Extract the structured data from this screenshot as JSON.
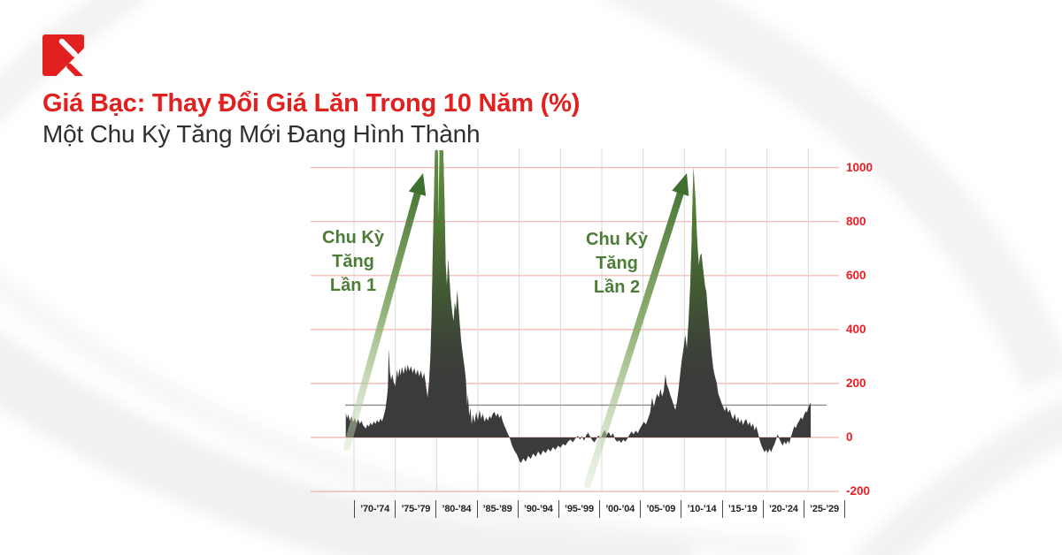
{
  "header": {
    "title": "Giá Bạc: Thay Đổi Giá Lăn Trong 10 Năm (%)",
    "subtitle": "Một Chu Kỳ Tăng Mới Đang Hình Thành"
  },
  "logo": {
    "name": "brand-mark"
  },
  "chart_data": {
    "type": "area",
    "title": "Giá Bạc: Thay Đổi Giá Lăn Trong 10 Năm (%)",
    "subtitle": "Một Chu Kỳ Tăng Mới Đang Hình Thành",
    "unit": "%",
    "x_labels": [
      "’70-’74",
      "’75-’79",
      "’80-’84",
      "’85-’89",
      "’90-’94",
      "’95-’99",
      "’00-’04",
      "’05-’09",
      "’10-’14",
      "’15-’19",
      "’20-’24",
      "’25-’29"
    ],
    "y_ticks": [
      1000,
      800,
      600,
      400,
      200,
      0,
      -200
    ],
    "ylim": [
      -200,
      1065
    ],
    "x_years": [
      1969,
      2030
    ],
    "grid": true,
    "legend": "none",
    "reference_line": 120,
    "annotations": [
      {
        "lines": [
          "Chu Kỳ",
          "Tăng",
          "Lần 1"
        ]
      },
      {
        "lines": [
          "Chu Kỳ",
          "Tăng",
          "Lần 2"
        ]
      }
    ],
    "colors": {
      "accent_red": "#e2201f",
      "tick_red": "#ec1c24",
      "grid_red": "#f0b0ac",
      "grid_gray": "#d8d8d8",
      "ref_line": "#8c8c8c",
      "area": "#3b3b3b",
      "green_text": "#4d7c39",
      "green_dark": "#3e6f2e",
      "green_top": "#649340"
    },
    "series": [
      {
        "name": "Thay đổi giá lăn 10 năm (%)",
        "points": [
          [
            1969.0,
            92
          ],
          [
            1969.15,
            70
          ],
          [
            1969.3,
            85
          ],
          [
            1969.5,
            62
          ],
          [
            1969.7,
            78
          ],
          [
            1969.9,
            58
          ],
          [
            1970.1,
            72
          ],
          [
            1970.3,
            55
          ],
          [
            1970.5,
            68
          ],
          [
            1970.7,
            50
          ],
          [
            1970.9,
            62
          ],
          [
            1971.1,
            45
          ],
          [
            1971.3,
            38
          ],
          [
            1971.45,
            33
          ],
          [
            1971.6,
            48
          ],
          [
            1971.8,
            40
          ],
          [
            1972.0,
            55
          ],
          [
            1972.2,
            45
          ],
          [
            1972.4,
            60
          ],
          [
            1972.6,
            50
          ],
          [
            1972.8,
            65
          ],
          [
            1973.0,
            55
          ],
          [
            1973.2,
            70
          ],
          [
            1973.4,
            60
          ],
          [
            1973.6,
            80
          ],
          [
            1973.8,
            105
          ],
          [
            1974.0,
            150
          ],
          [
            1974.1,
            185
          ],
          [
            1974.2,
            328
          ],
          [
            1974.35,
            240
          ],
          [
            1974.5,
            213
          ],
          [
            1974.65,
            235
          ],
          [
            1974.8,
            205
          ],
          [
            1975.0,
            190
          ],
          [
            1975.2,
            252
          ],
          [
            1975.35,
            222
          ],
          [
            1975.5,
            256
          ],
          [
            1975.65,
            230
          ],
          [
            1975.8,
            262
          ],
          [
            1976.0,
            235
          ],
          [
            1976.2,
            266
          ],
          [
            1976.35,
            242
          ],
          [
            1976.5,
            270
          ],
          [
            1976.7,
            246
          ],
          [
            1976.9,
            264
          ],
          [
            1977.1,
            238
          ],
          [
            1977.3,
            258
          ],
          [
            1977.5,
            232
          ],
          [
            1977.7,
            252
          ],
          [
            1977.9,
            226
          ],
          [
            1978.1,
            248
          ],
          [
            1978.3,
            218
          ],
          [
            1978.5,
            240
          ],
          [
            1978.7,
            196
          ],
          [
            1978.9,
            148
          ],
          [
            1979.1,
            210
          ],
          [
            1979.25,
            300
          ],
          [
            1979.4,
            450
          ],
          [
            1979.55,
            700
          ],
          [
            1979.7,
            900
          ],
          [
            1979.8,
            1064
          ],
          [
            1980.0,
            1064
          ],
          [
            1980.15,
            1064
          ],
          [
            1980.25,
            790
          ],
          [
            1980.35,
            1064
          ],
          [
            1980.6,
            1064
          ],
          [
            1980.8,
            1064
          ],
          [
            1980.95,
            880
          ],
          [
            1981.1,
            640
          ],
          [
            1981.25,
            560
          ],
          [
            1981.4,
            660
          ],
          [
            1981.55,
            590
          ],
          [
            1981.7,
            520
          ],
          [
            1981.9,
            460
          ],
          [
            1982.05,
            430
          ],
          [
            1982.2,
            500
          ],
          [
            1982.35,
            470
          ],
          [
            1982.5,
            545
          ],
          [
            1982.65,
            480
          ],
          [
            1982.8,
            420
          ],
          [
            1983.0,
            350
          ],
          [
            1983.2,
            300
          ],
          [
            1983.4,
            255
          ],
          [
            1983.55,
            210
          ],
          [
            1983.7,
            120
          ],
          [
            1983.8,
            160
          ],
          [
            1983.95,
            80
          ],
          [
            1984.1,
            110
          ],
          [
            1984.25,
            48
          ],
          [
            1984.4,
            85
          ],
          [
            1984.6,
            55
          ],
          [
            1984.8,
            95
          ],
          [
            1985.0,
            62
          ],
          [
            1985.2,
            102
          ],
          [
            1985.4,
            70
          ],
          [
            1985.6,
            88
          ],
          [
            1985.8,
            58
          ],
          [
            1986.0,
            75
          ],
          [
            1986.2,
            62
          ],
          [
            1986.4,
            80
          ],
          [
            1986.6,
            70
          ],
          [
            1986.8,
            88
          ],
          [
            1987.0,
            95
          ],
          [
            1987.2,
            78
          ],
          [
            1987.4,
            90
          ],
          [
            1987.6,
            72
          ],
          [
            1987.8,
            84
          ],
          [
            1988.0,
            60
          ],
          [
            1988.2,
            44
          ],
          [
            1988.4,
            30
          ],
          [
            1988.6,
            15
          ],
          [
            1988.85,
            0
          ],
          [
            1989.1,
            -28
          ],
          [
            1989.4,
            -48
          ],
          [
            1989.7,
            -62
          ],
          [
            1990.0,
            -85
          ],
          [
            1990.2,
            -95
          ],
          [
            1990.5,
            -78
          ],
          [
            1990.8,
            -90
          ],
          [
            1991.1,
            -68
          ],
          [
            1991.4,
            -80
          ],
          [
            1991.7,
            -60
          ],
          [
            1992.0,
            -72
          ],
          [
            1992.3,
            -52
          ],
          [
            1992.6,
            -66
          ],
          [
            1992.9,
            -48
          ],
          [
            1993.2,
            -58
          ],
          [
            1993.5,
            -42
          ],
          [
            1993.8,
            -52
          ],
          [
            1994.1,
            -36
          ],
          [
            1994.4,
            -46
          ],
          [
            1994.7,
            -30
          ],
          [
            1995.0,
            -38
          ],
          [
            1995.3,
            -24
          ],
          [
            1995.6,
            -30
          ],
          [
            1995.9,
            -16
          ],
          [
            1996.2,
            -8
          ],
          [
            1996.5,
            -18
          ],
          [
            1996.8,
            -4
          ],
          [
            1997.1,
            6
          ],
          [
            1997.35,
            -8
          ],
          [
            1997.6,
            4
          ],
          [
            1997.85,
            -12
          ],
          [
            1998.1,
            8
          ],
          [
            1998.35,
            18
          ],
          [
            1998.6,
            2
          ],
          [
            1998.85,
            -10
          ],
          [
            1999.1,
            -18
          ],
          [
            1999.35,
            -6
          ],
          [
            1999.6,
            8
          ],
          [
            1999.85,
            -4
          ],
          [
            2000.1,
            14
          ],
          [
            2000.35,
            28
          ],
          [
            2000.6,
            10
          ],
          [
            2000.85,
            20
          ],
          [
            2001.1,
            4
          ],
          [
            2001.35,
            16
          ],
          [
            2001.6,
            -6
          ],
          [
            2001.85,
            -16
          ],
          [
            2002.1,
            -10
          ],
          [
            2002.35,
            -20
          ],
          [
            2002.6,
            -8
          ],
          [
            2002.85,
            -16
          ],
          [
            2003.1,
            -4
          ],
          [
            2003.35,
            10
          ],
          [
            2003.6,
            22
          ],
          [
            2003.85,
            12
          ],
          [
            2004.1,
            26
          ],
          [
            2004.35,
            16
          ],
          [
            2004.6,
            32
          ],
          [
            2004.85,
            45
          ],
          [
            2005.1,
            58
          ],
          [
            2005.35,
            48
          ],
          [
            2005.6,
            70
          ],
          [
            2005.85,
            92
          ],
          [
            2006.1,
            148
          ],
          [
            2006.3,
            112
          ],
          [
            2006.5,
            140
          ],
          [
            2006.7,
            162
          ],
          [
            2006.9,
            148
          ],
          [
            2007.1,
            180
          ],
          [
            2007.3,
            152
          ],
          [
            2007.5,
            172
          ],
          [
            2007.7,
            235
          ],
          [
            2007.85,
            198
          ],
          [
            2008.1,
            178
          ],
          [
            2008.3,
            156
          ],
          [
            2008.5,
            140
          ],
          [
            2008.7,
            120
          ],
          [
            2008.9,
            102
          ],
          [
            2009.1,
            132
          ],
          [
            2009.3,
            180
          ],
          [
            2009.5,
            240
          ],
          [
            2009.7,
            290
          ],
          [
            2009.9,
            330
          ],
          [
            2010.1,
            380
          ],
          [
            2010.3,
            330
          ],
          [
            2010.5,
            430
          ],
          [
            2010.7,
            560
          ],
          [
            2010.85,
            700
          ],
          [
            2011.0,
            900
          ],
          [
            2011.1,
            1000
          ],
          [
            2011.2,
            950
          ],
          [
            2011.35,
            880
          ],
          [
            2011.5,
            760
          ],
          [
            2011.6,
            700
          ],
          [
            2011.75,
            640
          ],
          [
            2011.9,
            672
          ],
          [
            2012.05,
            682
          ],
          [
            2012.2,
            640
          ],
          [
            2012.35,
            600
          ],
          [
            2012.5,
            560
          ],
          [
            2012.65,
            540
          ],
          [
            2012.8,
            480
          ],
          [
            2012.95,
            430
          ],
          [
            2013.1,
            380
          ],
          [
            2013.3,
            310
          ],
          [
            2013.5,
            255
          ],
          [
            2013.7,
            225
          ],
          [
            2013.9,
            205
          ],
          [
            2014.1,
            162
          ],
          [
            2014.3,
            145
          ],
          [
            2014.5,
            128
          ],
          [
            2014.7,
            112
          ],
          [
            2014.9,
            98
          ],
          [
            2015.1,
            115
          ],
          [
            2015.3,
            92
          ],
          [
            2015.5,
            104
          ],
          [
            2015.7,
            82
          ],
          [
            2015.9,
            68
          ],
          [
            2016.1,
            88
          ],
          [
            2016.3,
            60
          ],
          [
            2016.5,
            76
          ],
          [
            2016.7,
            52
          ],
          [
            2016.9,
            68
          ],
          [
            2017.1,
            46
          ],
          [
            2017.3,
            62
          ],
          [
            2017.5,
            68
          ],
          [
            2017.7,
            45
          ],
          [
            2017.9,
            58
          ],
          [
            2018.1,
            38
          ],
          [
            2018.3,
            52
          ],
          [
            2018.5,
            26
          ],
          [
            2018.7,
            42
          ],
          [
            2018.9,
            18
          ],
          [
            2019.1,
            -8
          ],
          [
            2019.3,
            -28
          ],
          [
            2019.5,
            -42
          ],
          [
            2019.7,
            -55
          ],
          [
            2019.9,
            -45
          ],
          [
            2020.1,
            -58
          ],
          [
            2020.3,
            -42
          ],
          [
            2020.5,
            -55
          ],
          [
            2020.7,
            -38
          ],
          [
            2020.9,
            -25
          ],
          [
            2021.1,
            -8
          ],
          [
            2021.3,
            12
          ],
          [
            2021.5,
            -6
          ],
          [
            2021.7,
            -18
          ],
          [
            2021.9,
            -30
          ],
          [
            2022.1,
            -15
          ],
          [
            2022.3,
            -26
          ],
          [
            2022.5,
            -12
          ],
          [
            2022.7,
            -22
          ],
          [
            2022.9,
            2
          ],
          [
            2023.1,
            22
          ],
          [
            2023.3,
            42
          ],
          [
            2023.5,
            35
          ],
          [
            2023.7,
            52
          ],
          [
            2023.9,
            62
          ],
          [
            2024.1,
            75
          ],
          [
            2024.3,
            66
          ],
          [
            2024.5,
            85
          ],
          [
            2024.7,
            98
          ],
          [
            2024.85,
            92
          ],
          [
            2025.0,
            112
          ],
          [
            2025.15,
            120
          ],
          [
            2025.3,
            130
          ]
        ]
      }
    ]
  }
}
